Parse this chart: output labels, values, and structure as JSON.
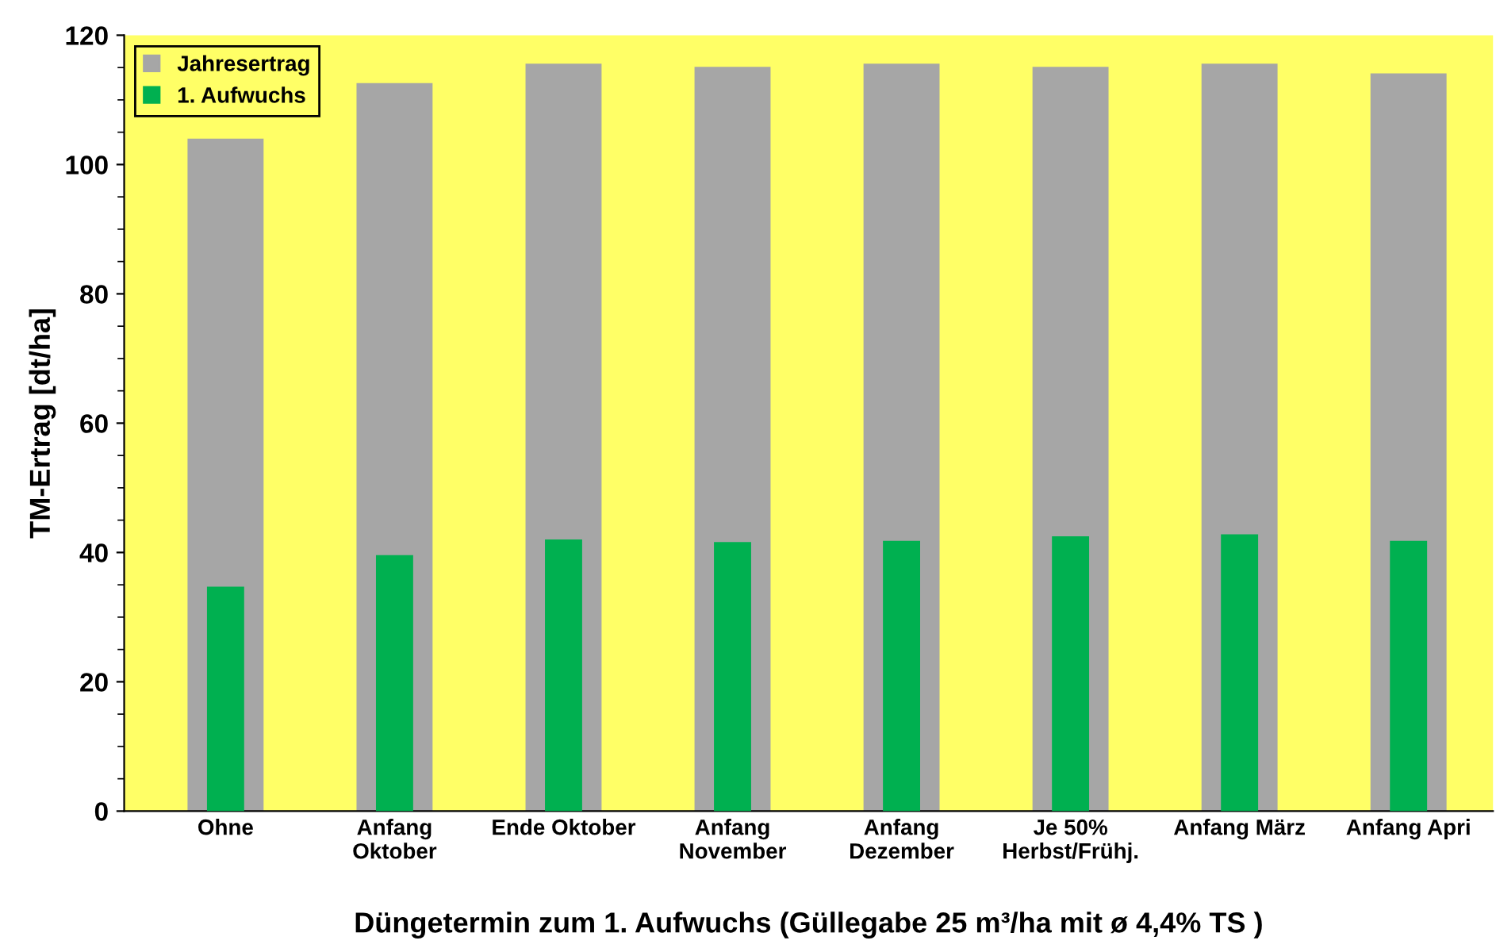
{
  "chart_data": {
    "type": "bar",
    "xlabel": "Düngetermin zum 1. Aufwuchs (Güllegabe 25 m³/ha mit ø 4,4% TS )",
    "ylabel": "TM-Ertrag [dt/ha]",
    "categories": [
      "Ohne",
      "Anfang\nOktober",
      "Ende Oktober",
      "Anfang\nNovember",
      "Anfang\nDezember",
      "Je 50%\nHerbst/Frühj.",
      "Anfang März",
      "Anfang Apri"
    ],
    "series": [
      {
        "name": "Jahresertrag",
        "color": "#a6a6a6",
        "values": [
          104.0,
          112.6,
          115.6,
          115.1,
          115.6,
          115.1,
          115.6,
          114.1
        ]
      },
      {
        "name": "1. Aufwuchs",
        "color": "#00b050",
        "values": [
          34.7,
          39.6,
          42.0,
          41.6,
          41.8,
          42.5,
          42.8,
          41.8
        ]
      }
    ],
    "ylim": [
      0,
      120
    ],
    "yticks": [
      0,
      20,
      40,
      60,
      80,
      100,
      120
    ],
    "grid": false,
    "legend": "top left"
  }
}
